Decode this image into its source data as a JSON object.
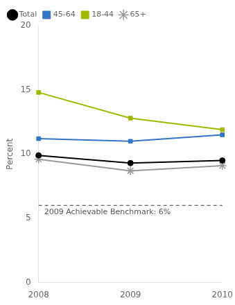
{
  "chart_data": {
    "type": "line",
    "x": [
      2008,
      2009,
      2010
    ],
    "series": [
      {
        "name": "Total",
        "color": "#000000",
        "marker": "circle",
        "values": [
          9.9,
          9.3,
          9.5
        ]
      },
      {
        "name": "45-64",
        "color": "#3575c8",
        "marker": "square",
        "values": [
          11.2,
          11.0,
          11.5
        ]
      },
      {
        "name": "18-44",
        "color": "#a0b800",
        "marker": "square",
        "values": [
          14.8,
          12.8,
          11.9
        ]
      },
      {
        "name": "65+",
        "color": "#999999",
        "marker": "star",
        "values": [
          9.6,
          8.7,
          9.1
        ]
      }
    ],
    "ylabel": "Percent",
    "xlim": [
      2008,
      2010
    ],
    "xticks": [
      2008,
      2009,
      2010
    ],
    "ylim": [
      0,
      20
    ],
    "yticks": [
      0,
      5,
      10,
      15,
      20
    ],
    "grid": false,
    "legend": "upper left",
    "annotations": [
      {
        "text": "2009 Achievable Benchmark: 6%",
        "y": 6,
        "color": "#666666",
        "line_style": "dashed"
      }
    ]
  }
}
